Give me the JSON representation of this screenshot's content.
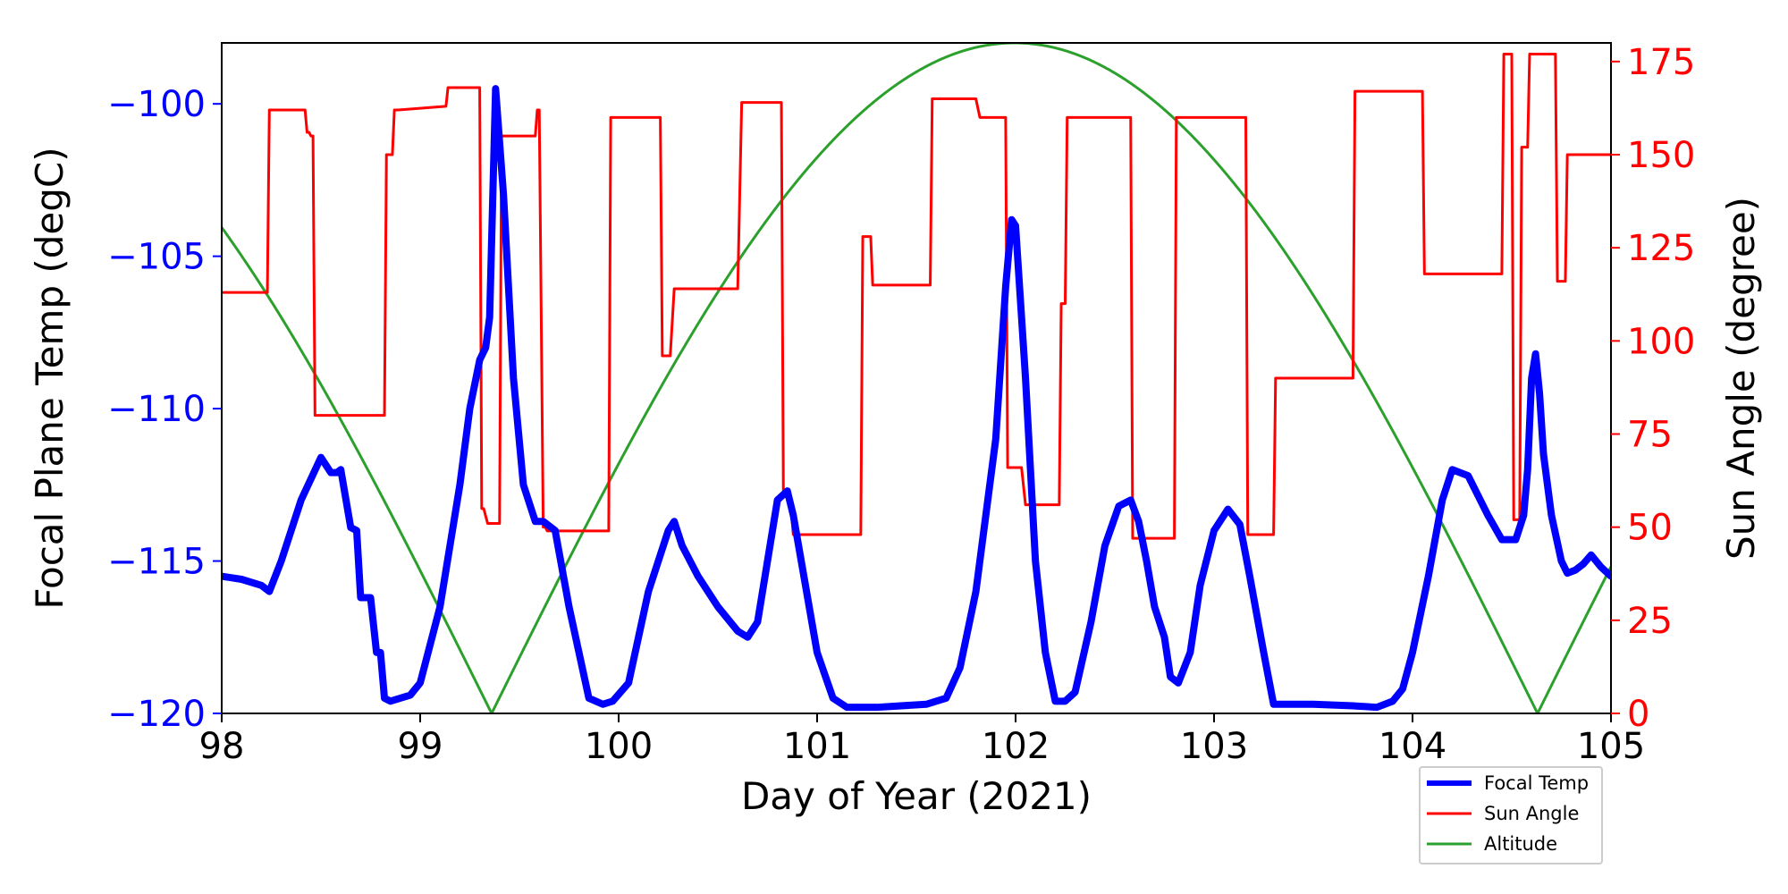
{
  "chart_data": {
    "type": "line",
    "xlabel": "Day of Year (2021)",
    "ylabel_left": "Focal Plane Temp (degC)",
    "ylabel_right": "Sun Angle (degree)",
    "xlim": [
      98,
      105
    ],
    "ylim_left": [
      -120,
      -98
    ],
    "ylim_right": [
      0,
      180
    ],
    "x_ticks": [
      98,
      99,
      100,
      101,
      102,
      103,
      104,
      105
    ],
    "y_left_ticks": [
      -120,
      -115,
      -110,
      -105,
      -100
    ],
    "y_right_ticks": [
      0,
      25,
      50,
      75,
      100,
      125,
      150,
      175
    ],
    "grid": false,
    "legend_position": "lower-right, outside below plot",
    "colors": {
      "left_axis": "#0000ff",
      "right_axis": "#ff0000",
      "frame": "#000000"
    },
    "series": [
      {
        "name": "Focal Temp",
        "axis": "left",
        "color": "#0000ff",
        "x": [
          98.0,
          98.1,
          98.2,
          98.24,
          98.3,
          98.4,
          98.5,
          98.55,
          98.58,
          98.6,
          98.65,
          98.68,
          98.7,
          98.75,
          98.78,
          98.8,
          98.82,
          98.85,
          98.9,
          98.95,
          99.0,
          99.1,
          99.2,
          99.25,
          99.3,
          99.33,
          99.35,
          99.38,
          99.42,
          99.47,
          99.52,
          99.58,
          99.62,
          99.68,
          99.75,
          99.85,
          99.92,
          99.97,
          100.05,
          100.15,
          100.25,
          100.28,
          100.32,
          100.4,
          100.5,
          100.6,
          100.65,
          100.7,
          100.75,
          100.8,
          100.85,
          100.88,
          100.92,
          101.0,
          101.08,
          101.15,
          101.3,
          101.55,
          101.65,
          101.72,
          101.8,
          101.9,
          101.95,
          101.98,
          102.0,
          102.05,
          102.1,
          102.15,
          102.2,
          102.25,
          102.3,
          102.38,
          102.45,
          102.52,
          102.58,
          102.62,
          102.66,
          102.7,
          102.75,
          102.78,
          102.82,
          102.88,
          102.93,
          103.0,
          103.07,
          103.13,
          103.18,
          103.25,
          103.3,
          103.35,
          103.5,
          103.7,
          103.82,
          103.9,
          103.95,
          104.0,
          104.08,
          104.15,
          104.2,
          104.28,
          104.38,
          104.45,
          104.52,
          104.56,
          104.58,
          104.6,
          104.62,
          104.64,
          104.66,
          104.7,
          104.75,
          104.78,
          104.82,
          104.86,
          104.9,
          104.95,
          105.0
        ],
        "y": [
          -115.5,
          -115.6,
          -115.8,
          -116.0,
          -115.0,
          -113.0,
          -111.6,
          -112.1,
          -112.1,
          -112.0,
          -113.9,
          -114.0,
          -116.2,
          -116.2,
          -118.0,
          -118.0,
          -119.5,
          -119.6,
          -119.5,
          -119.4,
          -119.0,
          -116.5,
          -112.5,
          -110.0,
          -108.4,
          -108.0,
          -107.0,
          -99.5,
          -103.0,
          -109.0,
          -112.5,
          -113.7,
          -113.7,
          -114.0,
          -116.5,
          -119.5,
          -119.7,
          -119.6,
          -119.0,
          -116.0,
          -114.0,
          -113.7,
          -114.5,
          -115.5,
          -116.5,
          -117.3,
          -117.5,
          -117.0,
          -115.0,
          -113.0,
          -112.7,
          -113.5,
          -115.0,
          -118.0,
          -119.5,
          -119.8,
          -119.8,
          -119.7,
          -119.5,
          -118.5,
          -116.0,
          -111.0,
          -106.0,
          -103.8,
          -104.0,
          -109.0,
          -115.0,
          -118.0,
          -119.6,
          -119.6,
          -119.3,
          -117.0,
          -114.5,
          -113.2,
          -113.0,
          -113.7,
          -115.0,
          -116.5,
          -117.5,
          -118.8,
          -119.0,
          -118.0,
          -115.8,
          -114.0,
          -113.3,
          -113.8,
          -115.5,
          -118.0,
          -119.7,
          -119.7,
          -119.7,
          -119.75,
          -119.8,
          -119.6,
          -119.2,
          -118.0,
          -115.5,
          -113.0,
          -112.0,
          -112.2,
          -113.5,
          -114.3,
          -114.3,
          -113.5,
          -112.0,
          -109.0,
          -108.2,
          -109.5,
          -111.5,
          -113.5,
          -115.0,
          -115.4,
          -115.3,
          -115.1,
          -114.8,
          -115.2,
          -115.5
        ]
      },
      {
        "name": "Sun Angle",
        "axis": "right",
        "color": "#ff0000",
        "x": [
          98.0,
          98.23,
          98.24,
          98.42,
          98.43,
          98.44,
          98.45,
          98.46,
          98.47,
          98.48,
          98.82,
          98.83,
          98.84,
          98.86,
          98.87,
          98.88,
          98.89,
          99.13,
          99.14,
          99.3,
          99.31,
          99.32,
          99.34,
          99.35,
          99.4,
          99.41,
          99.42,
          99.58,
          99.59,
          99.6,
          99.62,
          99.63,
          99.64,
          99.95,
          99.96,
          100.2,
          100.21,
          100.22,
          100.25,
          100.26,
          100.28,
          100.59,
          100.6,
          100.62,
          100.82,
          100.83,
          100.85,
          100.86,
          100.88,
          101.22,
          101.23,
          101.27,
          101.28,
          101.57,
          101.58,
          101.8,
          101.82,
          101.95,
          101.96,
          102.03,
          102.05,
          102.22,
          102.23,
          102.25,
          102.26,
          102.58,
          102.59,
          102.8,
          102.81,
          103.16,
          103.17,
          103.3,
          103.31,
          103.7,
          103.71,
          104.05,
          104.06,
          104.45,
          104.46,
          104.5,
          104.51,
          104.54,
          104.55,
          104.58,
          104.59,
          104.72,
          104.73,
          104.77,
          104.78,
          104.9,
          104.91,
          104.94,
          104.95,
          105.0
        ],
        "y": [
          113,
          113,
          162,
          162,
          156,
          156,
          155,
          155,
          80,
          80,
          80,
          150,
          150,
          150,
          162,
          162,
          162,
          163,
          168,
          168,
          55,
          55,
          51,
          51,
          51,
          155,
          155,
          155,
          162,
          162,
          50,
          50,
          49,
          49,
          160,
          160,
          160,
          96,
          96,
          96,
          114,
          114,
          114,
          164,
          164,
          60,
          60,
          60,
          48,
          48,
          128,
          128,
          115,
          115,
          165,
          165,
          160,
          160,
          66,
          66,
          56,
          56,
          110,
          110,
          160,
          160,
          47,
          47,
          160,
          160,
          48,
          48,
          90,
          90,
          167,
          167,
          118,
          118,
          177,
          177,
          52,
          52,
          152,
          152,
          177,
          177,
          116,
          116,
          150,
          150,
          150,
          150,
          150,
          150
        ]
      },
      {
        "name": "Altitude",
        "axis": "right",
        "color": "#2ca02c",
        "fn": "abs_cos",
        "zeros": [
          99.36,
          101.99,
          104.64
        ],
        "period": 5.27,
        "max": 180
      }
    ]
  }
}
